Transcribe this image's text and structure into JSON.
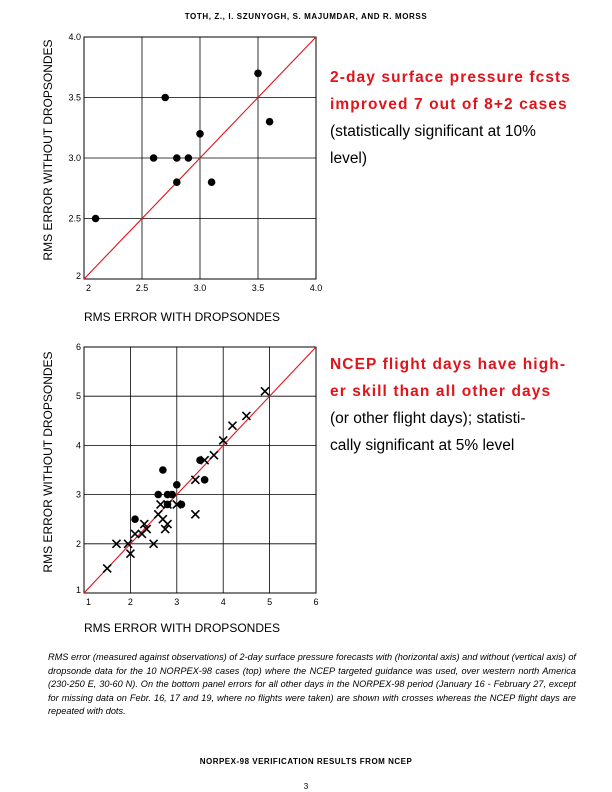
{
  "header": "TOTH, Z., I. SZUNYOGH, S. MAJUMDAR, AND R. MORSS",
  "top_annotation": {
    "red_line1": "2-day surface pressure fcsts",
    "red_line2": "improved 7 out of 8+2 cases",
    "black_line1": "(statistically significant at 10%",
    "black_line2": "level)"
  },
  "bottom_annotation": {
    "red_line1": "NCEP flight days have high-",
    "red_line2": "er skill than all other days",
    "black_line1": "(or other flight days); statisti-",
    "black_line2": "cally significant at 5% level"
  },
  "caption": "RMS error (measured against observations) of 2-day surface pressure forecasts with (horizontal axis) and without (vertical axis) of dropsonde data for the 10 NORPEX-98 cases (top) where the NCEP targeted guidance was used, over western north America (230-250 E, 30-60 N). On the bottom panel errors for all other days in the NORPEX-98 period (January 16 - February 27, except for missing data on Febr. 16, 17 and 19, where no flights were taken) are shown with crosses whereas the NCEP flight days are repeated with dots.",
  "footer": "NORPEX-98 VERIFICATION RESULTS FROM NCEP",
  "page_number": "3",
  "colors": {
    "diagonal": "#e0141b",
    "accent_text": "#e0141b"
  },
  "chart_data": [
    {
      "type": "scatter",
      "title": "",
      "xlabel": "RMS ERROR WITH DROPSONDES",
      "ylabel": "RMS ERROR WITHOUT DROPSONDES",
      "xlim": [
        2,
        4
      ],
      "ylim": [
        2,
        4
      ],
      "x_ticks": [
        2,
        2.5,
        3.0,
        3.5,
        4.0
      ],
      "x_tick_labels": [
        "2",
        "2.5",
        "3.0",
        "3.5",
        "4.0"
      ],
      "y_ticks": [
        2,
        2.5,
        3.0,
        3.5,
        4.0
      ],
      "y_tick_labels": [
        "2",
        "2.5",
        "3.0",
        "3.5",
        "4.0"
      ],
      "grid": true,
      "reference_line": "y = x",
      "series": [
        {
          "marker": "dot",
          "x": [
            2.1,
            2.6,
            2.7,
            2.8,
            2.8,
            2.9,
            3.0,
            3.1,
            3.5,
            3.6
          ],
          "y": [
            2.5,
            3.0,
            3.5,
            3.0,
            2.8,
            3.0,
            3.2,
            2.8,
            3.7,
            3.3
          ]
        }
      ]
    },
    {
      "type": "scatter",
      "title": "",
      "xlabel": "RMS ERROR WITH DROPSONDES",
      "ylabel": "RMS ERROR WITHOUT DROPSONDES",
      "xlim": [
        1,
        6
      ],
      "ylim": [
        1,
        6
      ],
      "x_ticks": [
        1,
        2,
        3,
        4,
        5,
        6
      ],
      "x_tick_labels": [
        "1",
        "2",
        "3",
        "4",
        "5",
        "6"
      ],
      "y_ticks": [
        1,
        2,
        3,
        4,
        5,
        6
      ],
      "y_tick_labels": [
        "1",
        "2",
        "3",
        "4",
        "5",
        "6"
      ],
      "grid": true,
      "reference_line": "y = x",
      "series": [
        {
          "marker": "dot",
          "x": [
            2.1,
            2.6,
            2.7,
            2.8,
            2.8,
            2.9,
            3.0,
            3.1,
            3.5,
            3.6
          ],
          "y": [
            2.5,
            3.0,
            3.5,
            3.0,
            2.8,
            3.0,
            3.2,
            2.8,
            3.7,
            3.3
          ]
        },
        {
          "marker": "cross",
          "x": [
            1.5,
            1.7,
            1.95,
            2.0,
            2.1,
            2.25,
            2.3,
            2.35,
            2.5,
            2.6,
            2.65,
            2.7,
            2.75,
            2.8,
            2.8,
            3.0,
            3.4,
            3.4,
            3.6,
            3.8,
            4.0,
            4.2,
            4.5,
            4.9
          ],
          "y": [
            1.5,
            2.0,
            2.0,
            1.8,
            2.2,
            2.2,
            2.4,
            2.3,
            2.0,
            2.6,
            2.8,
            2.5,
            2.3,
            2.8,
            2.4,
            2.8,
            3.3,
            2.6,
            3.7,
            3.8,
            4.1,
            4.4,
            4.6,
            5.1
          ]
        }
      ]
    }
  ]
}
